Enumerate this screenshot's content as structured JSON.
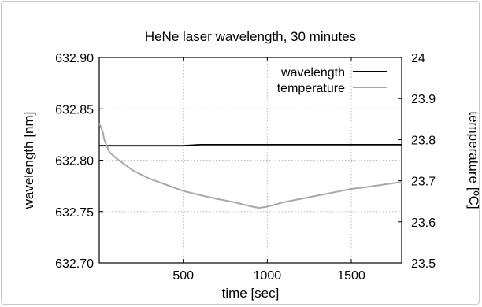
{
  "chart_data": {
    "type": "line",
    "title": "HeNe laser wavelength, 30 minutes",
    "xlabel": "time [sec]",
    "ylabel": "wavelength [nm]",
    "y2label": "temperature [ºC]",
    "xlim": [
      0,
      1800
    ],
    "ylim": [
      632.7,
      632.9
    ],
    "y2lim": [
      23.5,
      24.0
    ],
    "xticks": [
      "500",
      "1000",
      "1500"
    ],
    "yticks": [
      "632.70",
      "632.75",
      "632.80",
      "632.85",
      "632.90"
    ],
    "y2ticks": [
      "23.5",
      "23.6",
      "23.7",
      "23.8",
      "23.9",
      "24"
    ],
    "grid": true,
    "legend_position": "top-right",
    "series": [
      {
        "name": "wavelength",
        "axis": "left",
        "color": "#000000",
        "x": [
          0,
          100,
          200,
          300,
          400,
          500,
          600,
          700,
          800,
          900,
          1000,
          1100,
          1200,
          1300,
          1400,
          1500,
          1600,
          1700,
          1800
        ],
        "y": [
          632.814,
          632.814,
          632.814,
          632.814,
          632.814,
          632.814,
          632.815,
          632.815,
          632.815,
          632.815,
          632.815,
          632.815,
          632.815,
          632.815,
          632.815,
          632.815,
          632.815,
          632.815,
          632.815
        ]
      },
      {
        "name": "temperature",
        "axis": "right",
        "color": "#a8a8a8",
        "x": [
          0,
          20,
          30,
          40,
          60,
          100,
          150,
          200,
          250,
          300,
          400,
          500,
          600,
          700,
          800,
          900,
          950,
          1000,
          1100,
          1200,
          1300,
          1400,
          1500,
          1600,
          1700,
          1800
        ],
        "y": [
          23.84,
          23.82,
          23.8,
          23.79,
          23.77,
          23.755,
          23.74,
          23.725,
          23.715,
          23.705,
          23.69,
          23.675,
          23.665,
          23.656,
          23.648,
          23.638,
          23.634,
          23.637,
          23.648,
          23.656,
          23.664,
          23.672,
          23.68,
          23.685,
          23.691,
          23.697
        ]
      }
    ]
  }
}
